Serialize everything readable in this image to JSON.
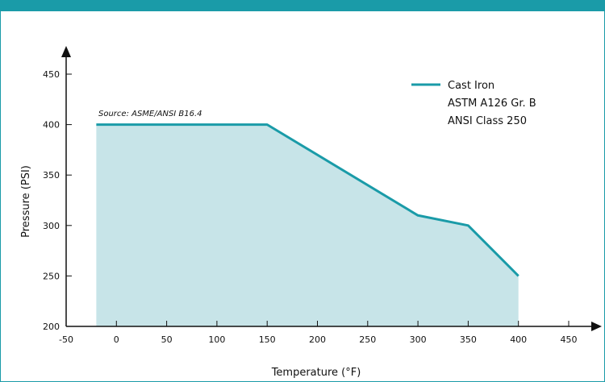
{
  "chart_data": {
    "type": "area",
    "xlabel": "Temperature (°F)",
    "ylabel": "Pressure (PSI)",
    "x_ticks": [
      -50,
      0,
      50,
      100,
      150,
      200,
      250,
      300,
      350,
      400,
      450
    ],
    "y_ticks": [
      200,
      250,
      300,
      350,
      400,
      450
    ],
    "xlim": [
      -50,
      450
    ],
    "ylim": [
      200,
      450
    ],
    "annotation": "Source: ASME/ANSI B16.4",
    "series": [
      {
        "name": "Cast Iron",
        "legend_lines": [
          "Cast Iron",
          "ASTM A126 Gr. B",
          "ANSI Class 250"
        ],
        "color": "#1a9ba8",
        "fill": "#c7e4e8",
        "x": [
          -20,
          150,
          300,
          350,
          400
        ],
        "y": [
          400,
          400,
          310,
          300,
          250
        ]
      }
    ],
    "grid": false,
    "legend_position": "top-right"
  }
}
